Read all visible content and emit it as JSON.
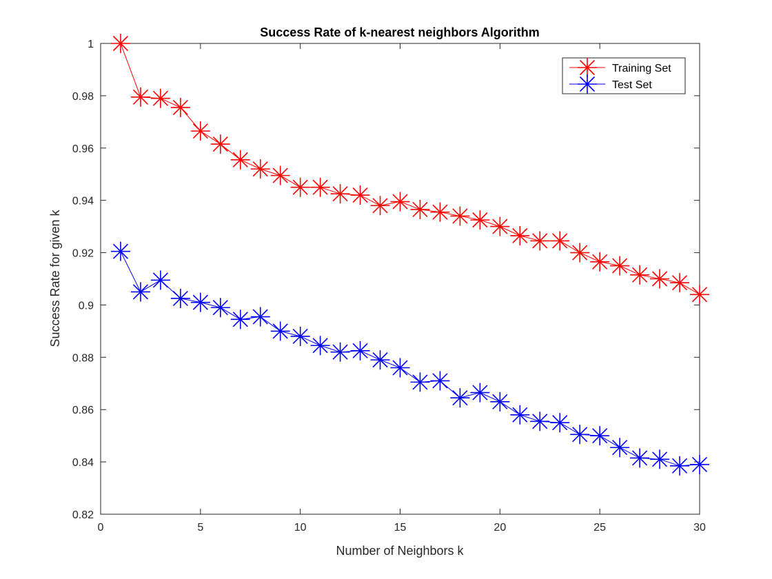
{
  "chart_data": {
    "type": "line",
    "title": "Success Rate of k-nearest neighbors Algorithm",
    "xlabel": "Number of Neighbors k",
    "ylabel": "Success Rate for given k",
    "xlim": [
      0,
      30
    ],
    "ylim": [
      0.82,
      1.0
    ],
    "xticks": [
      "0",
      "5",
      "10",
      "15",
      "20",
      "25",
      "30"
    ],
    "yticks": [
      "0.82",
      "0.84",
      "0.86",
      "0.88",
      "0.9",
      "0.92",
      "0.94",
      "0.96",
      "0.98",
      "1"
    ],
    "grid": false,
    "legend_position": "top-right",
    "marker": "asterisk",
    "x": [
      1,
      2,
      3,
      4,
      5,
      6,
      7,
      8,
      9,
      10,
      11,
      12,
      13,
      14,
      15,
      16,
      17,
      18,
      19,
      20,
      21,
      22,
      23,
      24,
      25,
      26,
      27,
      28,
      29,
      30
    ],
    "series": [
      {
        "name": "Training Set",
        "color": "#ff0000",
        "values": [
          1.0,
          0.9795,
          0.979,
          0.9755,
          0.9665,
          0.9615,
          0.9555,
          0.952,
          0.9495,
          0.945,
          0.945,
          0.9425,
          0.942,
          0.938,
          0.9395,
          0.9365,
          0.9355,
          0.934,
          0.9325,
          0.93,
          0.9265,
          0.9245,
          0.9245,
          0.92,
          0.9165,
          0.915,
          0.9115,
          0.91,
          0.9085,
          0.904
        ]
      },
      {
        "name": "Test Set",
        "color": "#0000ff",
        "values": [
          0.9205,
          0.905,
          0.9095,
          0.9025,
          0.901,
          0.899,
          0.8945,
          0.8955,
          0.89,
          0.888,
          0.8845,
          0.882,
          0.8825,
          0.879,
          0.876,
          0.8705,
          0.871,
          0.8645,
          0.8665,
          0.863,
          0.858,
          0.8555,
          0.855,
          0.8505,
          0.85,
          0.8455,
          0.8415,
          0.841,
          0.8385,
          0.839
        ]
      }
    ]
  }
}
